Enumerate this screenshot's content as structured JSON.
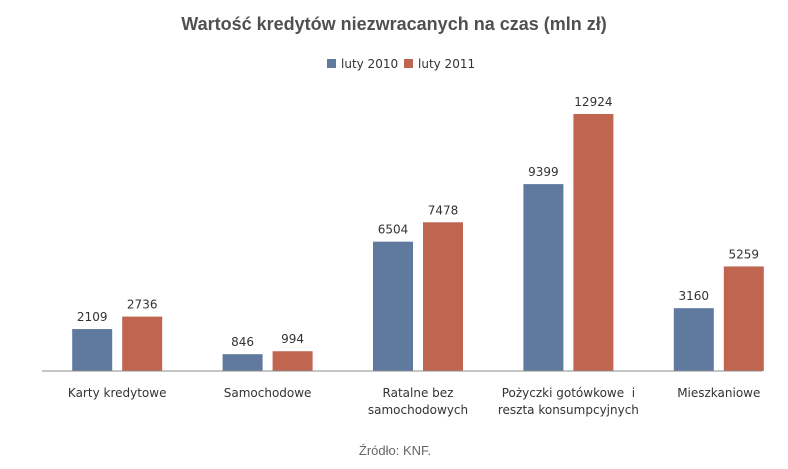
{
  "chart_data": {
    "type": "bar",
    "title": "Wartość kredytów niezwracanych na czas (mln zł)",
    "categories": [
      [
        "Karty kredytowe"
      ],
      [
        "Samochodowe"
      ],
      [
        "Ratalne bez",
        "samochodowych"
      ],
      [
        "Pożyczki gotówkowe  i",
        "reszta konsumpcyjnych"
      ],
      [
        "Mieszkaniowe"
      ]
    ],
    "series": [
      {
        "name": "luty 2010",
        "color": "#5f7a9e",
        "values": [
          2109,
          846,
          6504,
          9399,
          3160
        ]
      },
      {
        "name": "luty 2011",
        "color": "#c0654f",
        "values": [
          2736,
          994,
          7478,
          12924,
          5259
        ]
      }
    ],
    "ylim": [
      0,
      12924
    ],
    "legend_position": "top-center",
    "grid": false,
    "source": "Źródło: KNF."
  }
}
